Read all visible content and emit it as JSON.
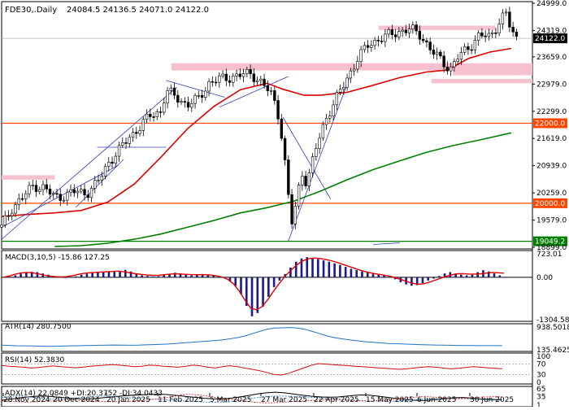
{
  "symbol_line": {
    "symbol": "FDE30,.Daily",
    "ohlc": "24084.5 24136.5 24071.0 24122.0"
  },
  "chart_data": [
    {
      "type": "candlestick",
      "name": "price",
      "price_axis_ticks": [
        "24999.0",
        "24319.0",
        "23659.0",
        "22979.0",
        "22299.0",
        "21619.0",
        "20939.0",
        "20259.0",
        "19579.0",
        "18899.0"
      ],
      "ylim": [
        18899,
        24999
      ],
      "current_price": {
        "label": "24122.0",
        "value": 24122
      },
      "horizontal_levels": [
        {
          "label": "22000.0",
          "value": 22000
        },
        {
          "label": "20000.0",
          "value": 20000
        },
        {
          "label": "19049.2",
          "value": 19049.2
        }
      ],
      "resistance_zones": [
        {
          "x_from": 0.0,
          "x_to": 0.1,
          "y_from": 20590,
          "y_to": 20700
        },
        {
          "x_from": 0.32,
          "x_to": 1.0,
          "y_from": 23320,
          "y_to": 23500
        },
        {
          "x_from": 0.71,
          "x_to": 0.93,
          "y_from": 24330,
          "y_to": 24440
        },
        {
          "x_from": 0.81,
          "x_to": 1.0,
          "y_from": 23000,
          "y_to": 23110
        },
        {
          "x_from": 0.85,
          "x_to": 1.0,
          "y_from": 23200,
          "y_to": 23330
        }
      ],
      "moving_averages": [
        {
          "color": "#e00000",
          "points": [
            [
              0.0,
              19670
            ],
            [
              0.05,
              19720
            ],
            [
              0.1,
              19760
            ],
            [
              0.15,
              19820
            ],
            [
              0.2,
              20030
            ],
            [
              0.25,
              20480
            ],
            [
              0.3,
              21150
            ],
            [
              0.35,
              21860
            ],
            [
              0.4,
              22420
            ],
            [
              0.45,
              22840
            ],
            [
              0.5,
              23000
            ],
            [
              0.53,
              22850
            ],
            [
              0.57,
              22700
            ],
            [
              0.6,
              22700
            ],
            [
              0.65,
              22770
            ],
            [
              0.7,
              22950
            ],
            [
              0.75,
              23140
            ],
            [
              0.8,
              23280
            ],
            [
              0.84,
              23330
            ],
            [
              0.88,
              23620
            ],
            [
              0.92,
              23780
            ],
            [
              0.96,
              23870
            ]
          ]
        },
        {
          "color": "#008000",
          "points": [
            [
              0.1,
              18920
            ],
            [
              0.15,
              18940
            ],
            [
              0.2,
              19000
            ],
            [
              0.25,
              19100
            ],
            [
              0.3,
              19230
            ],
            [
              0.35,
              19400
            ],
            [
              0.4,
              19570
            ],
            [
              0.45,
              19760
            ],
            [
              0.5,
              19890
            ],
            [
              0.55,
              20050
            ],
            [
              0.6,
              20300
            ],
            [
              0.65,
              20580
            ],
            [
              0.7,
              20840
            ],
            [
              0.75,
              21060
            ],
            [
              0.8,
              21270
            ],
            [
              0.85,
              21440
            ],
            [
              0.9,
              21580
            ],
            [
              0.96,
              21760
            ]
          ]
        }
      ],
      "close_path": [
        [
          0.0,
          19400
        ],
        [
          0.02,
          19900
        ],
        [
          0.04,
          20150
        ],
        [
          0.06,
          20450
        ],
        [
          0.08,
          20380
        ],
        [
          0.1,
          20150
        ],
        [
          0.12,
          20200
        ],
        [
          0.14,
          20300
        ],
        [
          0.16,
          20250
        ],
        [
          0.18,
          20500
        ],
        [
          0.2,
          21000
        ],
        [
          0.22,
          21300
        ],
        [
          0.24,
          21650
        ],
        [
          0.26,
          21900
        ],
        [
          0.28,
          22200
        ],
        [
          0.3,
          22300
        ],
        [
          0.31,
          22800
        ],
        [
          0.33,
          22650
        ],
        [
          0.35,
          22450
        ],
        [
          0.37,
          22600
        ],
        [
          0.39,
          23000
        ],
        [
          0.41,
          23100
        ],
        [
          0.43,
          23150
        ],
        [
          0.45,
          23200
        ],
        [
          0.47,
          23250
        ],
        [
          0.49,
          23000
        ],
        [
          0.51,
          22700
        ],
        [
          0.52,
          22300
        ],
        [
          0.53,
          21500
        ],
        [
          0.54,
          20200
        ],
        [
          0.545,
          19400
        ],
        [
          0.555,
          20000
        ],
        [
          0.565,
          20800
        ],
        [
          0.575,
          20500
        ],
        [
          0.585,
          21000
        ],
        [
          0.595,
          21500
        ],
        [
          0.61,
          22100
        ],
        [
          0.63,
          22600
        ],
        [
          0.65,
          23100
        ],
        [
          0.67,
          23600
        ],
        [
          0.69,
          23950
        ],
        [
          0.71,
          24100
        ],
        [
          0.73,
          24200
        ],
        [
          0.75,
          24300
        ],
        [
          0.77,
          24350
        ],
        [
          0.79,
          24200
        ],
        [
          0.81,
          23800
        ],
        [
          0.83,
          23550
        ],
        [
          0.845,
          23350
        ],
        [
          0.86,
          23650
        ],
        [
          0.88,
          23900
        ],
        [
          0.9,
          24200
        ],
        [
          0.92,
          24150
        ],
        [
          0.94,
          24600
        ],
        [
          0.95,
          24750
        ],
        [
          0.96,
          24300
        ],
        [
          0.97,
          24122
        ]
      ],
      "trendlines": [
        [
          [
            0.0,
            19100
          ],
          [
            0.33,
            22900
          ]
        ],
        [
          [
            0.0,
            19400
          ],
          [
            0.22,
            20950
          ]
        ],
        [
          [
            0.18,
            21400
          ],
          [
            0.31,
            21400
          ]
        ],
        [
          [
            0.31,
            23070
          ],
          [
            0.42,
            22650
          ]
        ],
        [
          [
            0.41,
            22400
          ],
          [
            0.54,
            23170
          ]
        ],
        [
          [
            0.53,
            22150
          ],
          [
            0.62,
            20100
          ]
        ],
        [
          [
            0.54,
            19050
          ],
          [
            0.66,
            23300
          ]
        ],
        [
          [
            0.14,
            19900
          ],
          [
            0.23,
            21100
          ]
        ],
        [
          [
            0.7,
            18970
          ],
          [
            0.75,
            19010
          ]
        ]
      ]
    },
    {
      "type": "bar",
      "name": "MACD",
      "label": "MACD(3,10,5) -15.86 127.25",
      "axis_ticks": [
        "723.01",
        "0.00",
        "-1304.58"
      ],
      "ylim": [
        -1304.58,
        723.01
      ],
      "histogram": [
        0,
        20,
        60,
        110,
        150,
        170,
        160,
        120,
        80,
        40,
        10,
        -20,
        -10,
        30,
        80,
        110,
        130,
        140,
        150,
        160,
        170,
        200,
        230,
        180,
        100,
        60,
        40,
        20,
        30,
        70,
        110,
        140,
        120,
        80,
        60,
        80,
        100,
        80,
        60,
        40,
        -20,
        -120,
        -260,
        -520,
        -880,
        -1200,
        -1100,
        -900,
        -600,
        -300,
        -100,
        100,
        300,
        480,
        580,
        620,
        600,
        560,
        520,
        480,
        430,
        380,
        320,
        260,
        220,
        180,
        140,
        120,
        90,
        60,
        20,
        -60,
        -150,
        -220,
        -260,
        -240,
        -180,
        -100,
        -40,
        40,
        120,
        160,
        120,
        80,
        60,
        80,
        160,
        220,
        180,
        120,
        60,
        -15.86
      ],
      "signal": [
        0,
        40,
        90,
        130,
        150,
        140,
        110,
        70,
        40,
        20,
        10,
        20,
        50,
        90,
        120,
        140,
        150,
        160,
        170,
        180,
        190,
        170,
        140,
        110,
        90,
        70,
        60,
        60,
        80,
        100,
        110,
        100,
        90,
        80,
        80,
        80,
        70,
        50,
        10,
        -60,
        -200,
        -420,
        -700,
        -950,
        -1000,
        -900,
        -680,
        -420,
        -180,
        40,
        220,
        380,
        500,
        570,
        590,
        580,
        550,
        510,
        460,
        400,
        340,
        280,
        220,
        170,
        130,
        100,
        70,
        40,
        0,
        -60,
        -120,
        -180,
        -210,
        -200,
        -150,
        -90,
        -30,
        30,
        80,
        110,
        110,
        100,
        100,
        110,
        130,
        150,
        140,
        127.25
      ]
    },
    {
      "type": "line",
      "name": "ATR",
      "label": "ATR(14) 280.7500",
      "axis_ticks": [
        "938.5018",
        "135.4625"
      ],
      "ylim": [
        135.4625,
        938.5018
      ],
      "color": "#1e73c8",
      "values": [
        300,
        290,
        280,
        275,
        270,
        265,
        260,
        262,
        268,
        275,
        280,
        285,
        290,
        295,
        300,
        305,
        300,
        295,
        300,
        310,
        320,
        330,
        340,
        360,
        380,
        400,
        420,
        440,
        460,
        480,
        520,
        560,
        620,
        700,
        780,
        860,
        900,
        910,
        920,
        900,
        860,
        780,
        700,
        620,
        560,
        520,
        480,
        450,
        420,
        400,
        380,
        360,
        350,
        340,
        330,
        320,
        310,
        305,
        300,
        295,
        290,
        288,
        285,
        283,
        282,
        281,
        280.75
      ]
    },
    {
      "type": "line",
      "name": "RSI",
      "label": "RSI(14) 52.3830",
      "axis_ticks": [
        "100",
        "70",
        "30",
        "0"
      ],
      "ylim": [
        0,
        100
      ],
      "levels": [
        70,
        30
      ],
      "color": "#d01010",
      "values": [
        65,
        62,
        60,
        58,
        55,
        57,
        60,
        63,
        60,
        58,
        56,
        58,
        62,
        64,
        66,
        68,
        66,
        63,
        60,
        62,
        66,
        65,
        62,
        60,
        58,
        62,
        66,
        63,
        58,
        55,
        60,
        64,
        60,
        55,
        50,
        45,
        38,
        30,
        28,
        35,
        45,
        55,
        65,
        72,
        70,
        68,
        66,
        64,
        62,
        60,
        58,
        56,
        54,
        52,
        50,
        52,
        55,
        58,
        60,
        58,
        55,
        52,
        54,
        57,
        60,
        58,
        56,
        54,
        52.383
      ]
    },
    {
      "type": "line",
      "name": "ADX",
      "label": "ADX(14) 22.0849 +DI:20.3752 -DI:34.0433",
      "axis_ticks": [
        "65",
        "35",
        "1"
      ],
      "ylim": [
        1,
        65
      ],
      "series": [
        {
          "name": "ADX",
          "color": "#000000",
          "values": [
            20,
            24,
            28,
            32,
            35,
            37,
            36,
            33,
            30,
            28,
            26,
            25,
            27,
            30,
            33,
            36,
            38,
            40,
            42,
            43,
            44,
            43,
            40,
            37,
            34,
            31,
            28,
            26,
            25,
            27,
            31,
            36,
            41,
            46,
            50,
            52,
            50,
            46,
            42,
            38,
            35,
            33,
            32,
            33,
            36,
            39,
            41,
            40,
            37,
            33,
            29,
            25,
            22,
            20,
            19,
            21,
            24,
            27,
            30,
            31,
            29,
            26,
            24,
            23,
            22.0849
          ]
        },
        {
          "name": "+DI",
          "color": "#1e73c8",
          "values": [
            30,
            35,
            38,
            34,
            30,
            27,
            25,
            23,
            26,
            30,
            33,
            35,
            37,
            35,
            32,
            30,
            28,
            26,
            24,
            22,
            20,
            18,
            17,
            15,
            13,
            12,
            12,
            14,
            18,
            24,
            30,
            34,
            36,
            37,
            36,
            35,
            33,
            31,
            28,
            26,
            24,
            22,
            20,
            18,
            17,
            16,
            16,
            18,
            20,
            22,
            24,
            26,
            28,
            29,
            28,
            26,
            24,
            22,
            21,
            20.3752
          ]
        },
        {
          "name": "-DI",
          "color": "#d01010",
          "values": [
            18,
            16,
            14,
            13,
            14,
            16,
            18,
            20,
            22,
            20,
            18,
            16,
            15,
            14,
            15,
            16,
            18,
            20,
            24,
            28,
            34,
            40,
            44,
            42,
            38,
            32,
            28,
            24,
            20,
            16,
            12,
            10,
            10,
            12,
            14,
            16,
            18,
            20,
            22,
            24,
            22,
            20,
            18,
            17,
            18,
            20,
            22,
            26,
            30,
            33,
            34,
            33,
            30,
            27,
            26,
            28,
            31,
            33,
            34,
            34.0433
          ]
        }
      ]
    },
    {
      "type": "axis",
      "name": "time-axis",
      "tick_labels": [
        "28 Nov 2024",
        "20 Dec 2024",
        "20 Jan 2025",
        "11 Feb 2025",
        "5 Mar 2025",
        "27 Mar 2025",
        "22 Apr 2025",
        "15 May 2025",
        "6 Jun 2025",
        "30 Jun 2025"
      ]
    }
  ]
}
